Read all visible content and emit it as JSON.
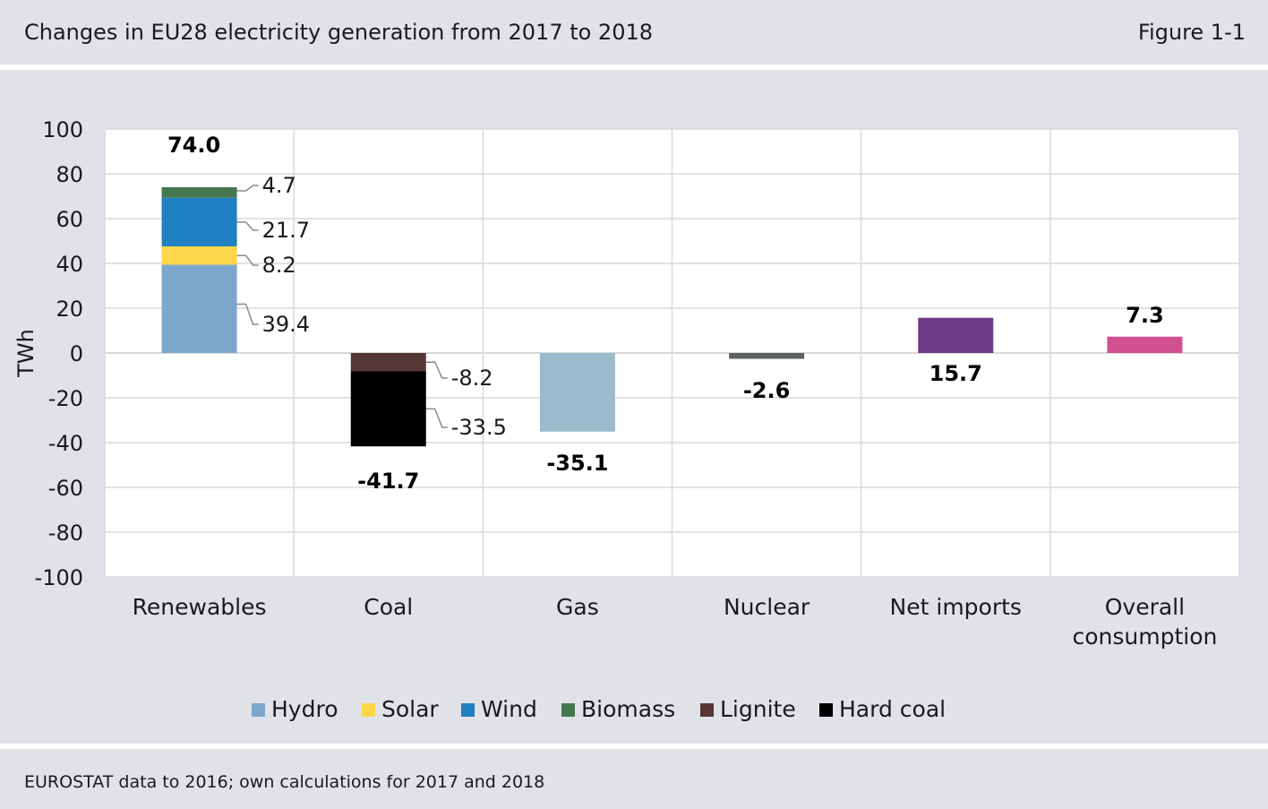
{
  "header": {
    "title": "Changes in EU28 electricity generation from 2017 to 2018",
    "figure_label": "Figure 1-1"
  },
  "footer": {
    "source": "EUROSTAT data to 2016; own calculations for 2017 and 2018"
  },
  "colors": {
    "hydro": "#7ba7cc",
    "solar": "#fdd64b",
    "wind": "#1f80c2",
    "biomass": "#45784f",
    "lignite": "#553735",
    "hard_coal": "#000000",
    "gas": "#9bbbcd",
    "nuclear": "#5b6360",
    "net_imports": "#6d3a85",
    "overall": "#d2508f"
  },
  "chart_data": {
    "type": "bar",
    "stacked": true,
    "title": "Changes in EU28 electricity generation from 2017 to 2018",
    "ylabel": "TWh",
    "ylim": [
      -100,
      100
    ],
    "yticks": [
      100,
      80,
      60,
      40,
      20,
      0,
      -20,
      -40,
      -60,
      -80,
      -100
    ],
    "grid": true,
    "legend_position": "bottom",
    "categories": [
      "Renewables",
      "Coal",
      "Gas",
      "Nuclear",
      "Net imports",
      "Overall consumption"
    ],
    "category_lines": [
      [
        "Renewables"
      ],
      [
        "Coal"
      ],
      [
        "Gas"
      ],
      [
        "Nuclear"
      ],
      [
        "Net imports"
      ],
      [
        "Overall",
        "consumption"
      ]
    ],
    "series": [
      {
        "name": "Hydro",
        "color_key": "hydro",
        "values": [
          39.4,
          null,
          null,
          null,
          null,
          null
        ],
        "labels": [
          "39.4",
          null,
          null,
          null,
          null,
          null
        ]
      },
      {
        "name": "Solar",
        "color_key": "solar",
        "values": [
          8.2,
          null,
          null,
          null,
          null,
          null
        ],
        "labels": [
          "8.2",
          null,
          null,
          null,
          null,
          null
        ]
      },
      {
        "name": "Wind",
        "color_key": "wind",
        "values": [
          21.7,
          null,
          null,
          null,
          null,
          null
        ],
        "labels": [
          "21.7",
          null,
          null,
          null,
          null,
          null
        ]
      },
      {
        "name": "Biomass",
        "color_key": "biomass",
        "values": [
          4.7,
          null,
          null,
          null,
          null,
          null
        ],
        "labels": [
          "4.7",
          null,
          null,
          null,
          null,
          null
        ]
      },
      {
        "name": "Lignite",
        "color_key": "lignite",
        "values": [
          null,
          -8.2,
          null,
          null,
          null,
          null
        ],
        "labels": [
          null,
          "-8.2",
          null,
          null,
          null,
          null
        ]
      },
      {
        "name": "Hard coal",
        "color_key": "hard_coal",
        "values": [
          null,
          -33.5,
          null,
          null,
          null,
          null
        ],
        "labels": [
          null,
          "-33.5",
          null,
          null,
          null,
          null
        ]
      },
      {
        "color_key": "gas",
        "values": [
          null,
          null,
          -35.1,
          null,
          null,
          null
        ]
      },
      {
        "color_key": "nuclear",
        "values": [
          null,
          null,
          null,
          -2.6,
          null,
          null
        ]
      },
      {
        "color_key": "net_imports",
        "values": [
          null,
          null,
          null,
          null,
          15.7,
          null
        ]
      },
      {
        "color_key": "overall",
        "values": [
          null,
          null,
          null,
          null,
          null,
          7.3
        ]
      }
    ],
    "totals": [
      "74.0",
      "-41.7",
      "-35.1",
      "-2.6",
      "15.7",
      "7.3"
    ],
    "legend": [
      {
        "name": "Hydro",
        "color_key": "hydro"
      },
      {
        "name": "Solar",
        "color_key": "solar"
      },
      {
        "name": "Wind",
        "color_key": "wind"
      },
      {
        "name": "Biomass",
        "color_key": "biomass"
      },
      {
        "name": "Lignite",
        "color_key": "lignite"
      },
      {
        "name": "Hard coal",
        "color_key": "hard_coal"
      }
    ]
  }
}
